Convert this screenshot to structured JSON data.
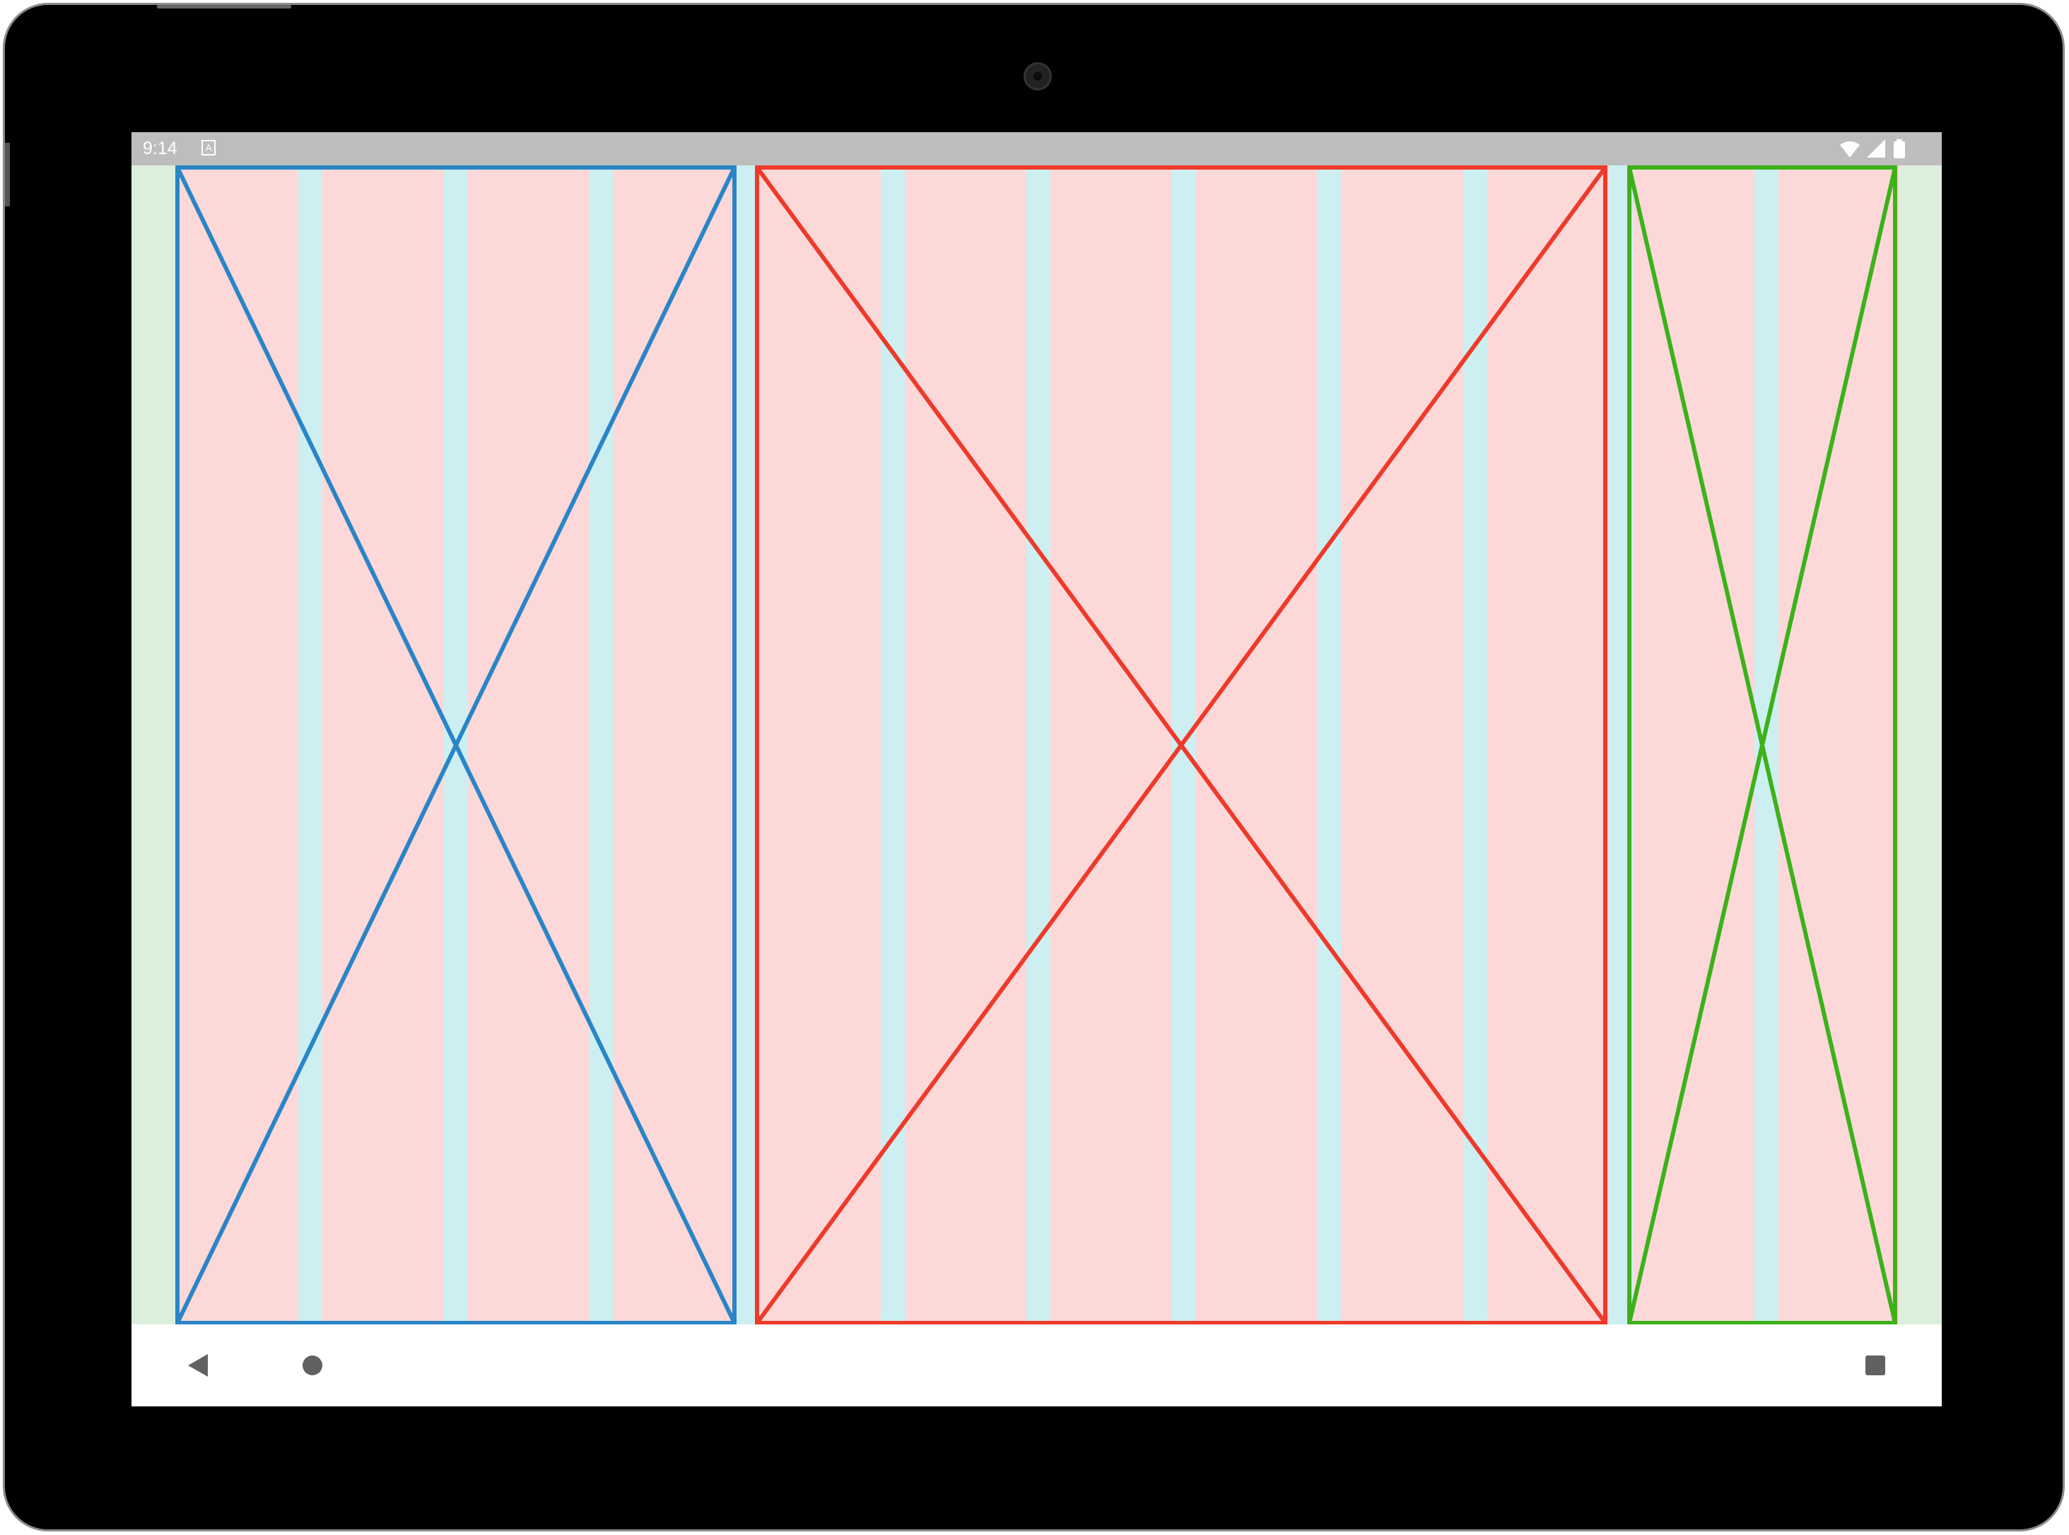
{
  "status_bar": {
    "time": "9:14",
    "notification_badge": "A",
    "icons": [
      "wifi-icon",
      "cellular-signal-icon",
      "battery-icon"
    ]
  },
  "layout_grid": {
    "margin_color": "#dcefdc",
    "column_color": "#fcd9d8",
    "gutter_color": "#cdeff2",
    "panes": [
      {
        "id": "left",
        "color": "#2a85c6",
        "highlight_color": "#00b0ea",
        "columns": 4
      },
      {
        "id": "center",
        "color": "#ee3a2b",
        "highlight_color": "#a8584f",
        "columns": 6
      },
      {
        "id": "right",
        "color": "#3db11a",
        "highlight_color": "#19d96c",
        "columns": 2
      }
    ]
  },
  "nav_bar": {
    "icons": [
      "back-icon",
      "home-icon",
      "recents-icon"
    ],
    "icon_color": "#616161"
  }
}
